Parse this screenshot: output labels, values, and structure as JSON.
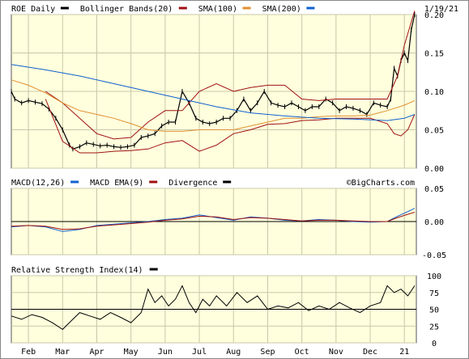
{
  "chart_data": [
    {
      "type": "line",
      "panel": "price",
      "legend": [
        {
          "label": "ROE Daily",
          "color": "#000000"
        },
        {
          "label": "Bollinger Bands(20)",
          "color": "#a01010"
        },
        {
          "label": "SMA(100)",
          "color": "#e09030"
        },
        {
          "label": "SMA(200)",
          "color": "#1060d0"
        }
      ],
      "date_label": "1/19/21",
      "ylim": [
        0,
        0.2
      ],
      "y_ticks": [
        "0.20",
        "0.15",
        "0.10",
        "0.05",
        "0.00"
      ],
      "y_tick_values": [
        0.2,
        0.15,
        0.1,
        0.05,
        0.0
      ],
      "x_ticks": [
        "Feb",
        "Mar",
        "Apr",
        "May",
        "Jun",
        "Jul",
        "Aug",
        "Sep",
        "Oct",
        "Nov",
        "Dec",
        "21"
      ],
      "x_tick_pos": [
        0.5,
        1.5,
        2.5,
        3.5,
        4.5,
        5.5,
        6.5,
        7.5,
        8.5,
        9.5,
        10.5,
        11.5
      ],
      "xlim": [
        0,
        11.85
      ],
      "series": [
        {
          "name": "ROE Daily",
          "color": "#000000",
          "x": [
            0.0,
            0.1,
            0.3,
            0.5,
            0.7,
            0.9,
            1.1,
            1.3,
            1.5,
            1.7,
            1.8,
            2.0,
            2.2,
            2.4,
            2.6,
            2.8,
            3.0,
            3.2,
            3.4,
            3.6,
            3.8,
            4.0,
            4.2,
            4.4,
            4.6,
            4.8,
            5.0,
            5.2,
            5.4,
            5.6,
            5.8,
            6.0,
            6.2,
            6.4,
            6.6,
            6.8,
            7.0,
            7.2,
            7.4,
            7.6,
            7.8,
            8.0,
            8.2,
            8.4,
            8.6,
            8.8,
            9.0,
            9.2,
            9.4,
            9.6,
            9.8,
            10.0,
            10.2,
            10.4,
            10.6,
            10.8,
            11.0,
            11.1,
            11.2,
            11.3,
            11.4,
            11.5,
            11.6,
            11.7,
            11.8
          ],
          "values": [
            0.1,
            0.09,
            0.085,
            0.088,
            0.086,
            0.084,
            0.077,
            0.065,
            0.05,
            0.03,
            0.025,
            0.028,
            0.033,
            0.031,
            0.029,
            0.03,
            0.028,
            0.027,
            0.028,
            0.03,
            0.04,
            0.042,
            0.045,
            0.055,
            0.06,
            0.06,
            0.1,
            0.085,
            0.065,
            0.06,
            0.058,
            0.06,
            0.065,
            0.065,
            0.075,
            0.09,
            0.075,
            0.085,
            0.1,
            0.085,
            0.082,
            0.08,
            0.085,
            0.08,
            0.075,
            0.08,
            0.08,
            0.09,
            0.085,
            0.075,
            0.08,
            0.078,
            0.075,
            0.07,
            0.085,
            0.082,
            0.08,
            0.09,
            0.13,
            0.12,
            0.14,
            0.15,
            0.14,
            0.18,
            0.2
          ]
        },
        {
          "name": "Bollinger Upper",
          "color": "#a01010",
          "x": [
            1.0,
            1.5,
            2.0,
            2.5,
            3.0,
            3.5,
            4.0,
            4.5,
            5.0,
            5.5,
            6.0,
            6.5,
            7.0,
            7.5,
            8.0,
            8.5,
            9.0,
            9.5,
            10.0,
            10.5,
            11.0,
            11.3,
            11.5,
            11.8
          ],
          "values": [
            0.1,
            0.085,
            0.065,
            0.045,
            0.038,
            0.04,
            0.06,
            0.075,
            0.075,
            0.1,
            0.11,
            0.1,
            0.105,
            0.108,
            0.108,
            0.09,
            0.088,
            0.09,
            0.09,
            0.09,
            0.09,
            0.12,
            0.16,
            0.205
          ]
        },
        {
          "name": "Bollinger Lower",
          "color": "#a01010",
          "x": [
            1.0,
            1.5,
            2.0,
            2.5,
            3.0,
            3.5,
            4.0,
            4.5,
            5.0,
            5.5,
            6.0,
            6.5,
            7.0,
            7.5,
            8.0,
            8.5,
            9.0,
            9.5,
            10.0,
            10.5,
            11.0,
            11.2,
            11.4,
            11.6,
            11.8
          ],
          "values": [
            0.09,
            0.035,
            0.02,
            0.02,
            0.022,
            0.023,
            0.025,
            0.033,
            0.036,
            0.022,
            0.03,
            0.045,
            0.05,
            0.057,
            0.058,
            0.062,
            0.063,
            0.065,
            0.065,
            0.065,
            0.058,
            0.045,
            0.042,
            0.05,
            0.07
          ]
        },
        {
          "name": "SMA(100)",
          "color": "#e09030",
          "x": [
            0.0,
            0.5,
            1.0,
            1.5,
            2.0,
            2.5,
            3.0,
            3.5,
            4.0,
            4.5,
            5.0,
            5.5,
            6.0,
            6.5,
            7.0,
            7.5,
            8.0,
            8.5,
            9.0,
            9.5,
            10.0,
            10.5,
            11.0,
            11.5,
            11.8
          ],
          "values": [
            0.115,
            0.108,
            0.098,
            0.085,
            0.075,
            0.07,
            0.065,
            0.058,
            0.05,
            0.048,
            0.048,
            0.05,
            0.05,
            0.05,
            0.055,
            0.06,
            0.065,
            0.065,
            0.067,
            0.068,
            0.068,
            0.069,
            0.075,
            0.082,
            0.088
          ]
        },
        {
          "name": "SMA(200)",
          "color": "#1060d0",
          "x": [
            0.0,
            1.0,
            2.0,
            3.0,
            4.0,
            5.0,
            6.0,
            7.0,
            8.0,
            9.0,
            10.0,
            11.0,
            11.5,
            11.8
          ],
          "values": [
            0.135,
            0.128,
            0.12,
            0.11,
            0.1,
            0.09,
            0.08,
            0.072,
            0.068,
            0.065,
            0.064,
            0.062,
            0.065,
            0.07
          ]
        }
      ]
    },
    {
      "type": "line",
      "panel": "macd",
      "legend": [
        {
          "label": "MACD(12,26)",
          "color": "#1060d0"
        },
        {
          "label": "MACD EMA(9)",
          "color": "#a01010"
        },
        {
          "label": "Divergence",
          "color": "#000000"
        }
      ],
      "watermark": "©BigCharts.com",
      "ylim": [
        -0.05,
        0.05
      ],
      "y_ticks": [
        "0.05",
        "0.00",
        "-0.05"
      ],
      "y_tick_values": [
        0.05,
        0.0,
        -0.05
      ],
      "xlim": [
        0,
        11.85
      ],
      "series": [
        {
          "name": "MACD(12,26)",
          "color": "#1060d0",
          "x": [
            0.0,
            0.5,
            1.0,
            1.5,
            2.0,
            2.5,
            3.0,
            3.5,
            4.0,
            4.5,
            5.0,
            5.5,
            6.0,
            6.5,
            7.0,
            7.5,
            8.0,
            8.5,
            9.0,
            9.5,
            10.0,
            10.5,
            11.0,
            11.3,
            11.6,
            11.8
          ],
          "values": [
            -0.008,
            -0.006,
            -0.008,
            -0.015,
            -0.012,
            -0.006,
            -0.004,
            -0.002,
            0.0,
            0.003,
            0.005,
            0.01,
            0.006,
            0.002,
            0.007,
            0.005,
            0.002,
            0.001,
            0.003,
            0.002,
            0.0,
            -0.001,
            0.0,
            0.008,
            0.015,
            0.02
          ]
        },
        {
          "name": "MACD EMA(9)",
          "color": "#a01010",
          "x": [
            0.0,
            0.5,
            1.0,
            1.5,
            2.0,
            2.5,
            3.0,
            3.5,
            4.0,
            4.5,
            5.0,
            5.5,
            6.0,
            6.5,
            7.0,
            7.5,
            8.0,
            8.5,
            9.0,
            9.5,
            10.0,
            10.5,
            11.0,
            11.3,
            11.6,
            11.8
          ],
          "values": [
            -0.007,
            -0.006,
            -0.007,
            -0.012,
            -0.011,
            -0.007,
            -0.005,
            -0.003,
            -0.001,
            0.002,
            0.004,
            0.008,
            0.007,
            0.003,
            0.006,
            0.005,
            0.003,
            0.001,
            0.002,
            0.002,
            0.001,
            0.0,
            0.0,
            0.006,
            0.011,
            0.014
          ]
        }
      ]
    },
    {
      "type": "line",
      "panel": "rsi",
      "legend": [
        {
          "label": "Relative Strength Index(14)",
          "color": "#000000"
        }
      ],
      "ylim": [
        0,
        100
      ],
      "y_ticks": [
        "100",
        "75",
        "50",
        "25",
        "0"
      ],
      "y_tick_values": [
        100,
        75,
        50,
        25,
        0
      ],
      "xlim": [
        0,
        11.85
      ],
      "series": [
        {
          "name": "RSI(14)",
          "color": "#000000",
          "x": [
            0.0,
            0.3,
            0.6,
            0.9,
            1.2,
            1.5,
            1.8,
            2.0,
            2.3,
            2.6,
            2.9,
            3.2,
            3.5,
            3.8,
            4.0,
            4.2,
            4.4,
            4.6,
            4.8,
            5.0,
            5.2,
            5.4,
            5.6,
            5.8,
            6.0,
            6.3,
            6.6,
            6.9,
            7.2,
            7.5,
            7.8,
            8.1,
            8.4,
            8.7,
            9.0,
            9.3,
            9.6,
            9.9,
            10.2,
            10.5,
            10.8,
            11.0,
            11.2,
            11.4,
            11.6,
            11.8
          ],
          "values": [
            40,
            35,
            42,
            38,
            30,
            20,
            35,
            45,
            40,
            35,
            45,
            38,
            30,
            45,
            80,
            60,
            70,
            55,
            65,
            85,
            60,
            45,
            65,
            55,
            70,
            55,
            75,
            60,
            70,
            50,
            55,
            52,
            60,
            48,
            55,
            50,
            60,
            52,
            45,
            55,
            60,
            85,
            75,
            80,
            70,
            85
          ]
        }
      ]
    }
  ]
}
